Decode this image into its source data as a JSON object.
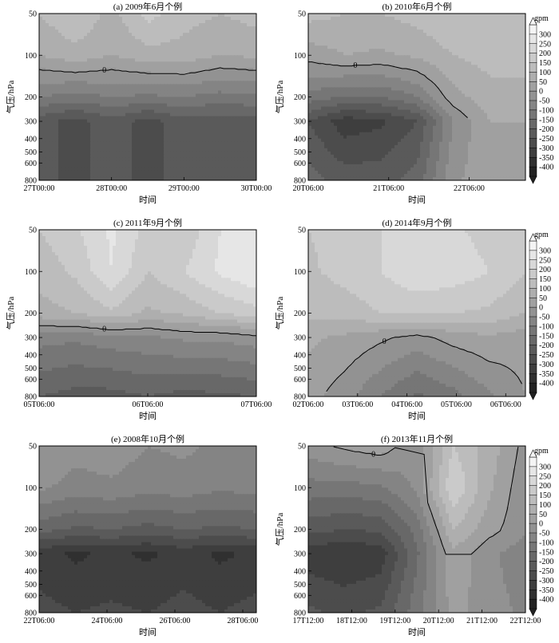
{
  "colorbar": {
    "unit": "gpm",
    "ticks": [
      "300",
      "250",
      "200",
      "150",
      "100",
      "50",
      "0",
      "-50",
      "-100",
      "-150",
      "-200",
      "-250",
      "-300",
      "-350",
      "-400"
    ],
    "colors": [
      "#f4f4f4",
      "#e6e6e6",
      "#d8d8d8",
      "#cacaca",
      "#bcbcbc",
      "#aeaeae",
      "#a0a0a0",
      "#929292",
      "#848484",
      "#767676",
      "#686868",
      "#5a5a5a",
      "#4c4c4c",
      "#3e3e3e",
      "#303030",
      "#222222"
    ]
  },
  "chart_data": [
    {
      "type": "heatmap",
      "title": "(a) 2009年6月个例",
      "xlabel": "时间",
      "ylabel": "气压/hPa",
      "yscale": "log",
      "y_ticks": [
        "50",
        "100",
        "200",
        "300",
        "400",
        "500",
        "600",
        "800"
      ],
      "x_ticks": [
        "27T00:00",
        "28T00:00",
        "29T00:00",
        "30T00:00"
      ],
      "y_levels": [
        50,
        100,
        200,
        300,
        800
      ],
      "values": [
        [
          100,
          150,
          80,
          170,
          120,
          100,
          120
        ],
        [
          50,
          80,
          50,
          80,
          80,
          50,
          60
        ],
        [
          -100,
          -120,
          -100,
          -110,
          -100,
          -120,
          -110
        ],
        [
          -230,
          -270,
          -220,
          -270,
          -220,
          -230,
          -220
        ],
        [
          -250,
          -250,
          -250,
          -250,
          -250,
          -250,
          -250
        ]
      ],
      "zero_contour_label": "0"
    },
    {
      "type": "heatmap",
      "title": "(b) 2010年6月个例",
      "xlabel": "时间",
      "ylabel": "气压/hPa",
      "yscale": "log",
      "y_ticks": [
        "50",
        "100",
        "200",
        "300",
        "400",
        "500",
        "600",
        "800"
      ],
      "x_ticks": [
        "20T06:00",
        "21T06:00",
        "22T06:00"
      ],
      "y_levels": [
        50,
        100,
        200,
        300,
        800
      ],
      "values": [
        [
          120,
          100,
          100,
          120,
          150,
          150,
          140
        ],
        [
          20,
          50,
          40,
          60,
          100,
          120,
          120
        ],
        [
          -120,
          -150,
          -150,
          -100,
          30,
          80,
          80
        ],
        [
          -250,
          -330,
          -310,
          -250,
          -50,
          50,
          50
        ],
        [
          -180,
          -220,
          -220,
          -180,
          -10,
          30,
          40
        ]
      ],
      "zero_contour_label": "0"
    },
    {
      "type": "heatmap",
      "title": "(c) 2011年9月个例",
      "xlabel": "时间",
      "ylabel": "气压/hPa",
      "yscale": "log",
      "y_ticks": [
        "50",
        "100",
        "200",
        "300",
        "400",
        "500",
        "600",
        "800"
      ],
      "x_ticks": [
        "05T06:00",
        "06T06:00",
        "07T06:00"
      ],
      "y_levels": [
        50,
        100,
        200,
        300,
        800
      ],
      "values": [
        [
          150,
          190,
          260,
          180,
          160,
          250,
          280
        ],
        [
          120,
          160,
          250,
          150,
          200,
          260,
          300
        ],
        [
          80,
          100,
          140,
          90,
          110,
          150,
          180
        ],
        [
          -80,
          -90,
          -70,
          -60,
          -40,
          -40,
          -20
        ],
        [
          -200,
          -220,
          -220,
          -200,
          -220,
          -210,
          -200
        ]
      ],
      "zero_contour_label": "0"
    },
    {
      "type": "heatmap",
      "title": "(d) 2014年9月个例",
      "xlabel": "时间",
      "ylabel": "气压/hPa",
      "yscale": "log",
      "y_ticks": [
        "50",
        "100",
        "200",
        "300",
        "400",
        "500",
        "600",
        "800"
      ],
      "x_ticks": [
        "02T06:00",
        "03T06:00",
        "04T06:00",
        "05T06:00",
        "06T06:00"
      ],
      "y_levels": [
        50,
        100,
        200,
        300,
        800
      ],
      "values": [
        [
          150,
          170,
          200,
          230,
          210,
          180,
          150
        ],
        [
          140,
          170,
          200,
          240,
          230,
          200,
          150
        ],
        [
          110,
          120,
          150,
          160,
          150,
          140,
          100
        ],
        [
          60,
          40,
          10,
          -20,
          20,
          40,
          20
        ],
        [
          20,
          -30,
          -100,
          -160,
          -120,
          -60,
          0
        ]
      ],
      "zero_contour_label": "0"
    },
    {
      "type": "heatmap",
      "title": "(e) 2008年10月个例",
      "xlabel": "时间",
      "ylabel": "",
      "yscale": "log",
      "y_ticks": [
        "50",
        "100",
        "200",
        "300",
        "400",
        "500",
        "600",
        "800"
      ],
      "x_ticks": [
        "22T06:00",
        "24T06:00",
        "26T06:00",
        "28T06:00"
      ],
      "y_levels": [
        50,
        100,
        200,
        300,
        800
      ],
      "values": [
        [
          0,
          -30,
          -20,
          -50,
          -40,
          -60,
          -50
        ],
        [
          -40,
          -70,
          -60,
          -80,
          -70,
          -90,
          -80
        ],
        [
          -180,
          -210,
          -200,
          -220,
          -200,
          -210,
          -200
        ],
        [
          -330,
          -360,
          -340,
          -360,
          -330,
          -360,
          -340
        ],
        [
          -280,
          -300,
          -290,
          -300,
          -280,
          -300,
          -280
        ]
      ]
    },
    {
      "type": "heatmap",
      "title": "(f) 2013年11月个例",
      "xlabel": "时间",
      "ylabel": "气压/hPa",
      "yscale": "log",
      "y_ticks": [
        "50",
        "100",
        "200",
        "300",
        "400",
        "500",
        "600",
        "800"
      ],
      "x_ticks": [
        "17T12:00",
        "18T12:00",
        "19T12:00",
        "20T12:00",
        "21T12:00",
        "22T12:00"
      ],
      "y_levels": [
        50,
        100,
        200,
        300,
        800
      ],
      "values": [
        [
          -20,
          10,
          30,
          -40,
          150,
          80,
          -20
        ],
        [
          -120,
          -120,
          -110,
          -40,
          200,
          60,
          -40
        ],
        [
          -230,
          -250,
          -240,
          -130,
          100,
          20,
          -40
        ],
        [
          -330,
          -350,
          -330,
          -160,
          40,
          -40,
          -80
        ],
        [
          -240,
          -260,
          -240,
          -120,
          20,
          -30,
          -60
        ]
      ],
      "zero_contour_label": "0"
    }
  ]
}
